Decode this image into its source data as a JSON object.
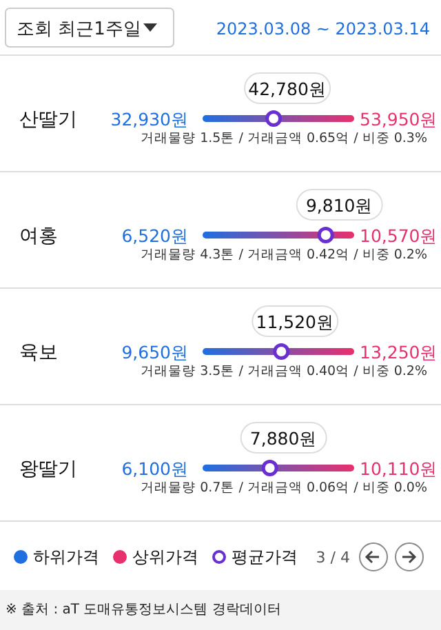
{
  "chart_data": {
    "type": "other",
    "title": "조회 최근1주일",
    "subtitle": "2023.03.08 ~ 2023.03.14",
    "categories": [
      "산딸기",
      "여홍",
      "육보",
      "왕딸기"
    ],
    "series": [
      {
        "name": "하위가격",
        "color": "#1f6fe0",
        "values": [
          32930,
          6520,
          9650,
          6100
        ],
        "value_labels": [
          "32,930원",
          "6,520원",
          "9,650원",
          "6,100원"
        ]
      },
      {
        "name": "상위가격",
        "color": "#e8306e",
        "values": [
          53950,
          10570,
          13250,
          10110
        ],
        "value_labels": [
          "53,950원",
          "10,570원",
          "13,250원",
          "10,110원"
        ]
      },
      {
        "name": "평균가격",
        "color": "#6a2fd0",
        "values": [
          42780,
          9810,
          11520,
          7880
        ],
        "value_labels": [
          "42,780원",
          "9,810원",
          "11,520원",
          "7,880원"
        ]
      }
    ],
    "annotations": [
      "거래물량 1.5톤 / 거래금액 0.65억 / 비중 0.3%",
      "거래물량 4.3톤 / 거래금액 0.42억 / 비중 0.2%",
      "거래물량 3.5톤 / 거래금액 0.40억 / 비중 0.2%",
      "거래물량 0.7톤 / 거래금액 0.06억 / 비중 0.0%",
      "3 / 4",
      "※ 출처 : aT 도매유통정보시스템 경락데이터"
    ],
    "legend": "bottom"
  }
}
